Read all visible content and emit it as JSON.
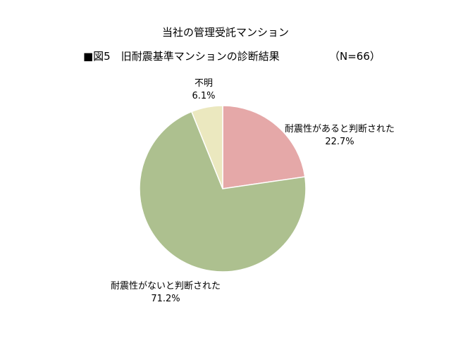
{
  "title": "当社の管理受託マンション",
  "subtitle": "■図5　旧耐震基準マンションの診断結果",
  "sample_size": "（N=66）",
  "chart_data": {
    "type": "pie",
    "start_angle_deg": 0,
    "direction": "clockwise",
    "slices": [
      {
        "label": "耐震性があると判断された",
        "value": 22.7,
        "value_label": "22.7%",
        "color": "#e5a8a8"
      },
      {
        "label": "耐震性がないと判断された",
        "value": 71.2,
        "value_label": "71.2%",
        "color": "#adc08f"
      },
      {
        "label": "不明",
        "value": 6.1,
        "value_label": "6.1%",
        "color": "#ebe8bf"
      }
    ]
  }
}
